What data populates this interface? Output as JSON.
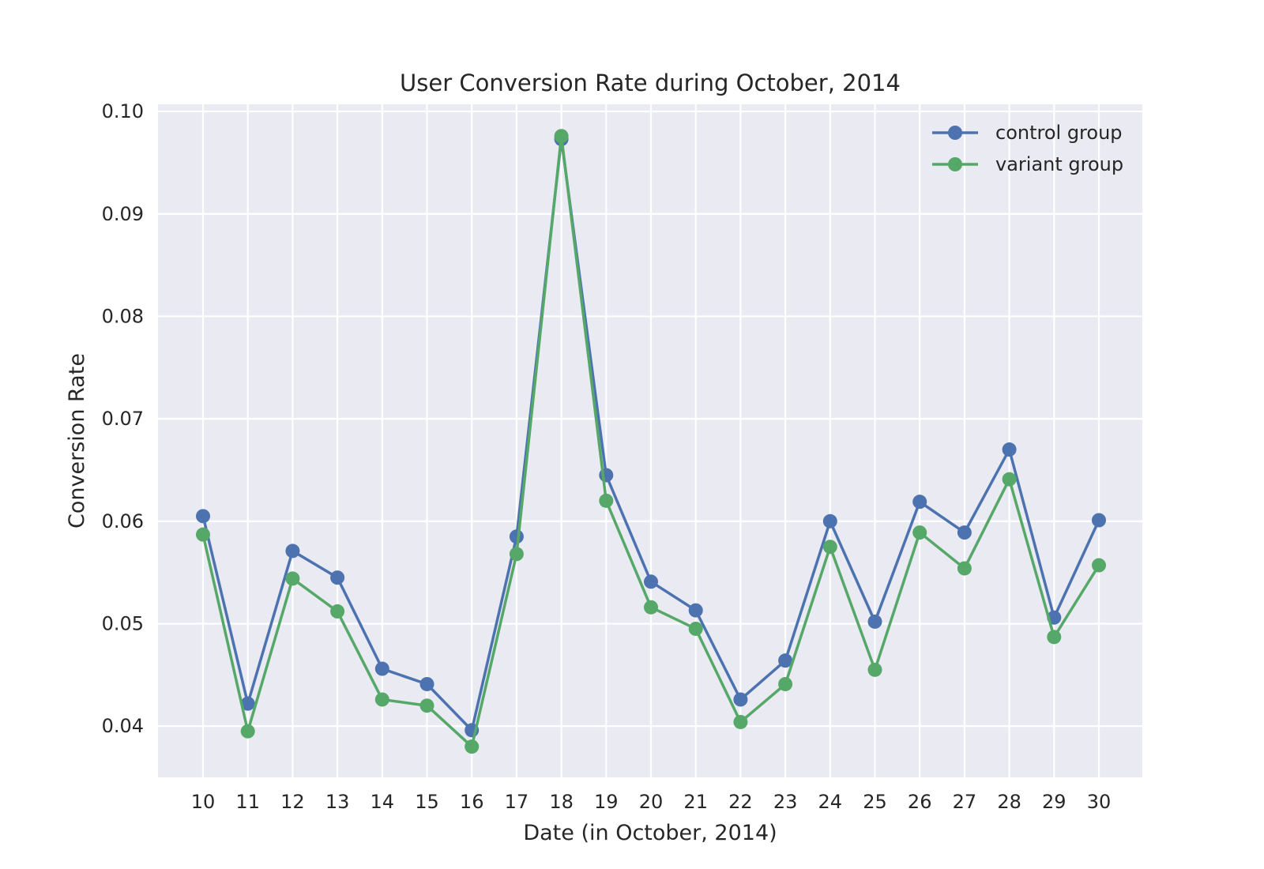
{
  "chart_data": {
    "type": "line",
    "title": "User Conversion Rate during October, 2014",
    "xlabel": "Date (in October, 2014)",
    "ylabel": "Conversion Rate",
    "categories": [
      "10",
      "11",
      "12",
      "13",
      "14",
      "15",
      "16",
      "17",
      "18",
      "19",
      "20",
      "21",
      "22",
      "23",
      "24",
      "25",
      "26",
      "27",
      "28",
      "29",
      "30"
    ],
    "ylim": [
      0.035,
      0.1007
    ],
    "yticks": [
      "0.04",
      "0.05",
      "0.06",
      "0.07",
      "0.08",
      "0.09",
      "0.10"
    ],
    "grid": true,
    "legend_position": "top-right",
    "series": [
      {
        "name": "control group",
        "color": "#4c72b0",
        "values": [
          0.0605,
          0.0422,
          0.0571,
          0.0545,
          0.0456,
          0.0441,
          0.0396,
          0.0585,
          0.0973,
          0.0645,
          0.0541,
          0.0513,
          0.0426,
          0.0464,
          0.06,
          0.0502,
          0.0619,
          0.0589,
          0.067,
          0.0506,
          0.0601
        ]
      },
      {
        "name": "variant group",
        "color": "#55a868",
        "values": [
          0.0587,
          0.0395,
          0.0544,
          0.0512,
          0.0426,
          0.042,
          0.038,
          0.0568,
          0.0976,
          0.062,
          0.0516,
          0.0495,
          0.0404,
          0.0441,
          0.0575,
          0.0455,
          0.0589,
          0.0554,
          0.0641,
          0.0487,
          0.0557
        ]
      }
    ]
  },
  "style": {
    "plot_background": "#eaeaf2",
    "grid_color": "#ffffff",
    "text_color": "#262626"
  }
}
